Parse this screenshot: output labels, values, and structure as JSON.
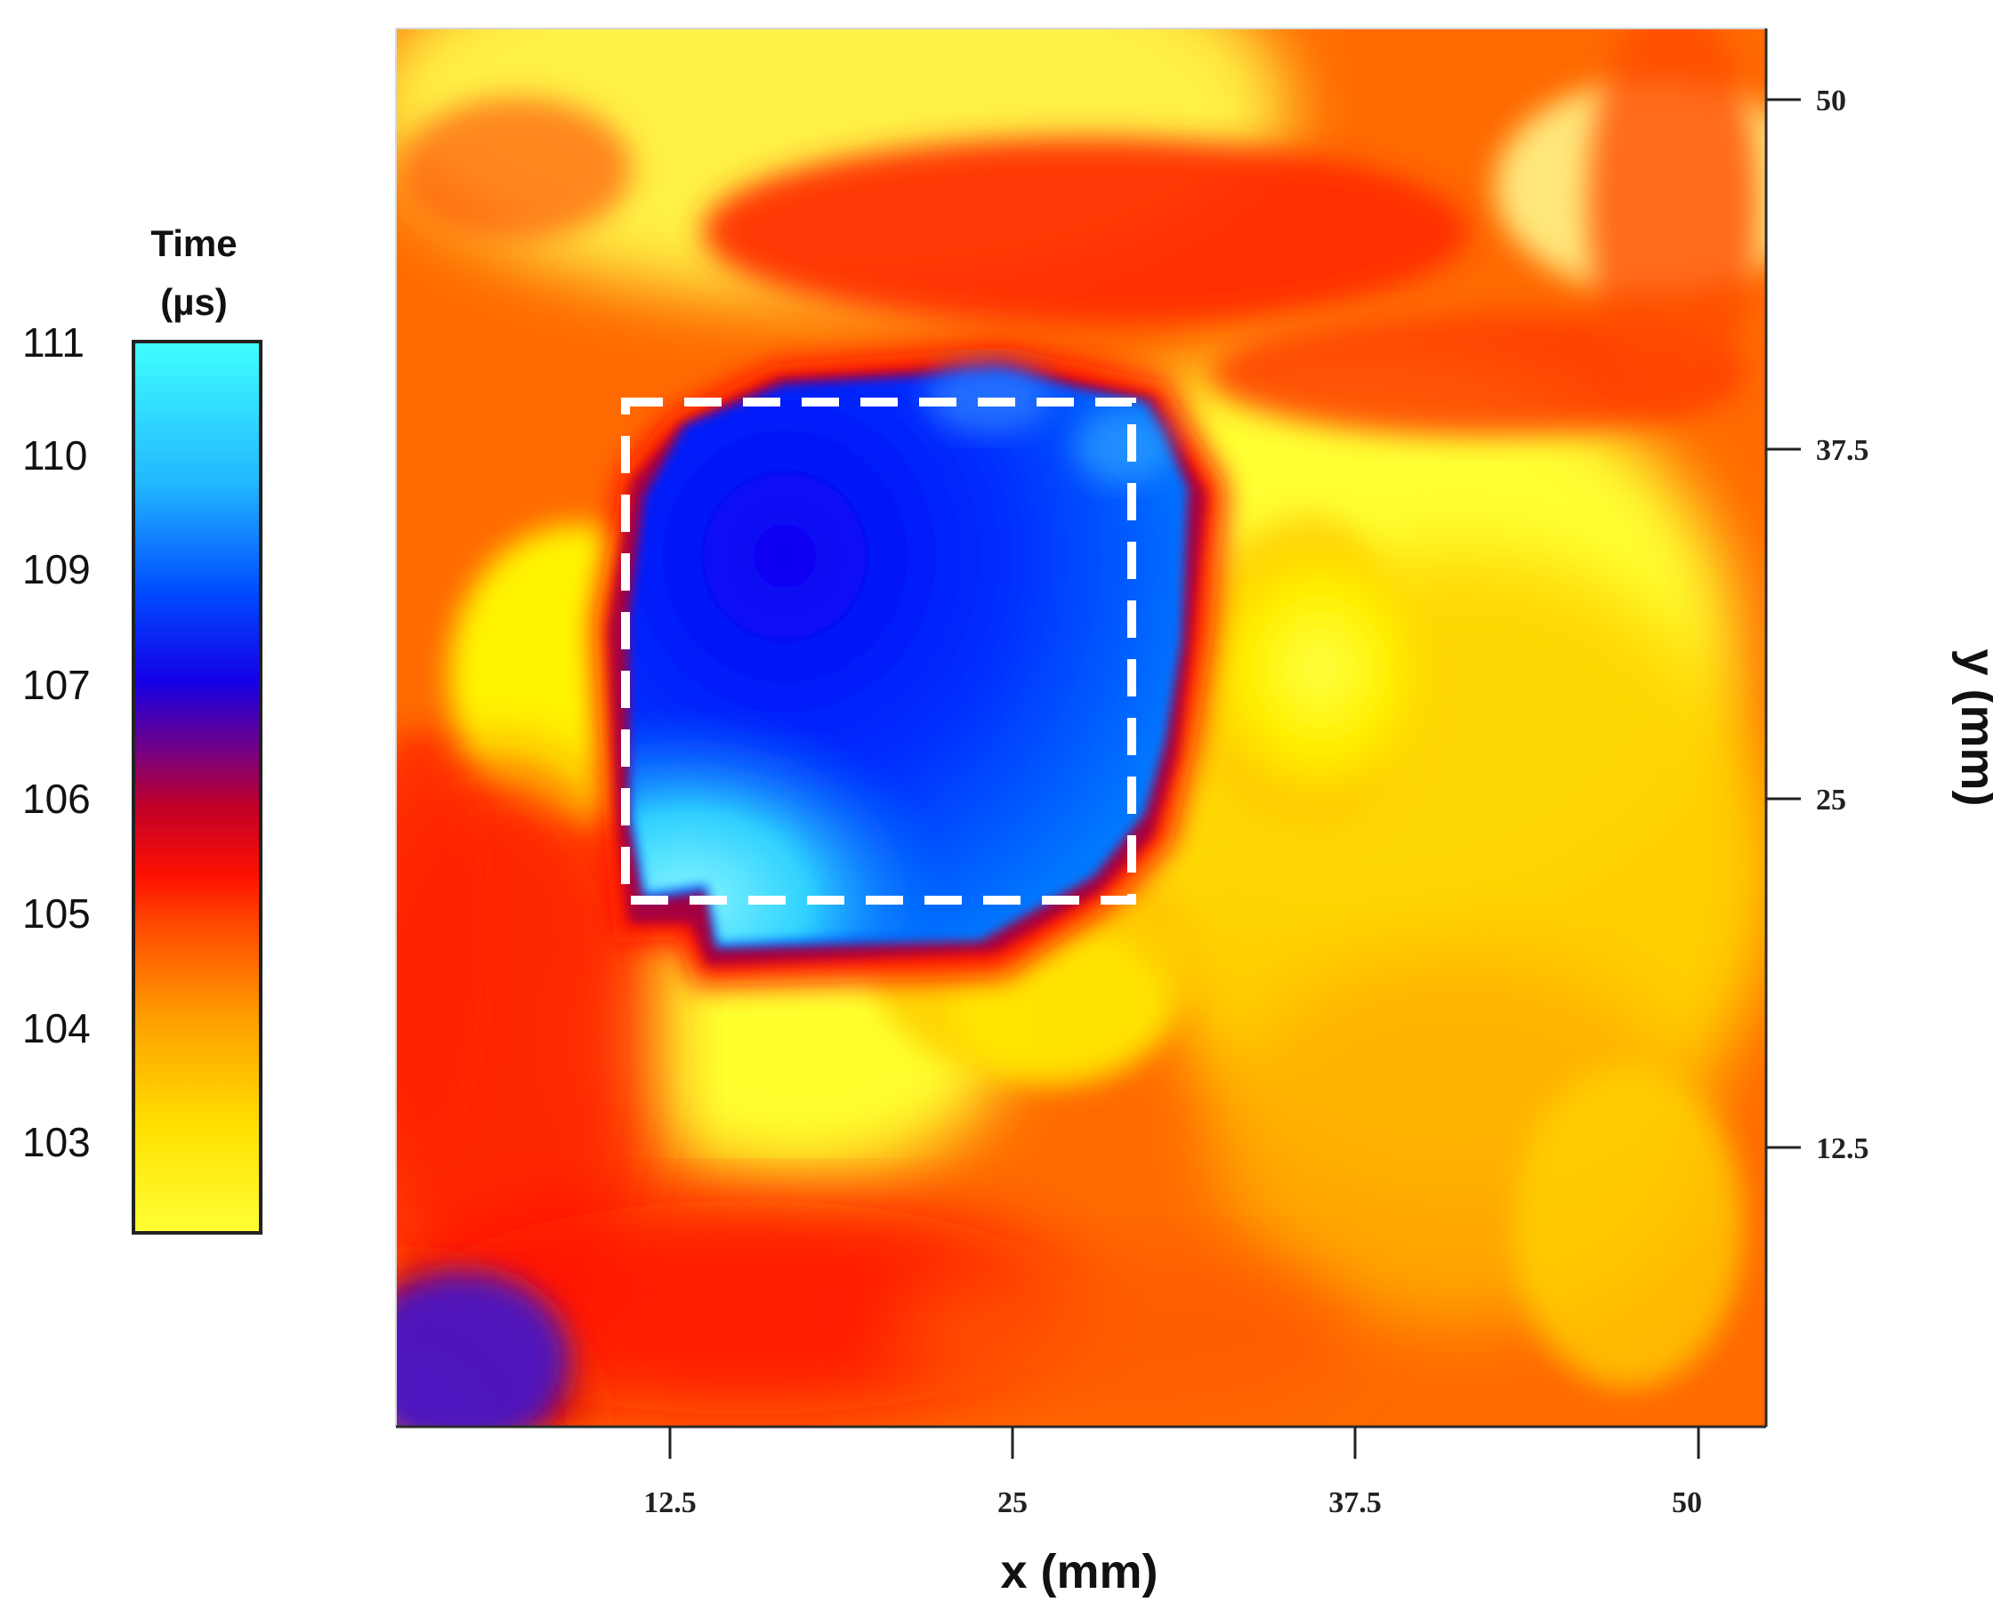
{
  "chart_data": {
    "type": "heatmap",
    "xlabel": "x (mm)",
    "ylabel": "y (mm)",
    "xticks": [
      "12.5",
      "25",
      "37.5",
      "50"
    ],
    "yticks": [
      "12.5",
      "25",
      "37.5",
      "50"
    ],
    "xtick_values": [
      12.5,
      25,
      37.5,
      50
    ],
    "ytick_values": [
      12.5,
      25,
      37.5,
      50
    ],
    "xlim": [
      2.5,
      52.5
    ],
    "ylim": [
      2.5,
      52.5
    ],
    "colorbar": {
      "title_line1": "Time",
      "title_line2": "(µs)",
      "ticks": [
        "111",
        "110",
        "109",
        "107",
        "106",
        "105",
        "104",
        "103"
      ],
      "colors": [
        "#FFFF2A",
        "#FFB000",
        "#FF4000",
        "#E80000",
        "#8C0070",
        "#1A00E0",
        "#0055FF",
        "#3FFFFF"
      ]
    },
    "defect_outline": {
      "style": "dashed",
      "color": "#FFFFFF",
      "x_range_mm": [
        11,
        29
      ],
      "y_range_mm": [
        22,
        39.5
      ]
    },
    "grid": false,
    "legend": "left"
  }
}
